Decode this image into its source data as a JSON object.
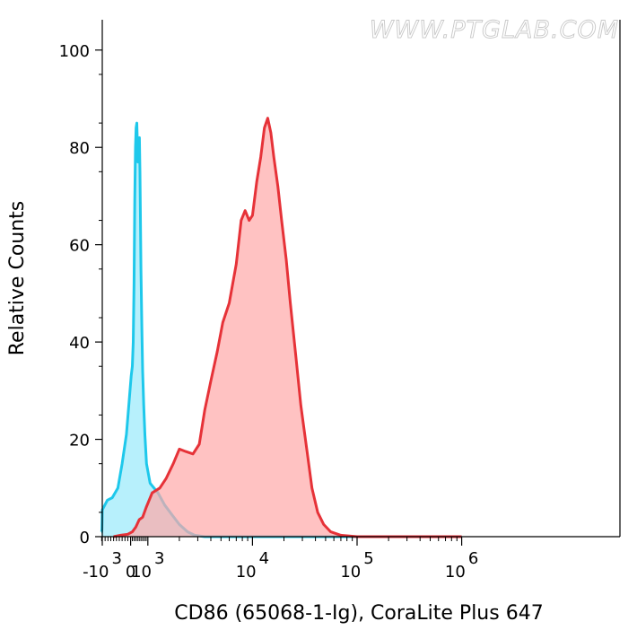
{
  "watermark": "WWW.PTGLAB.COM",
  "chart_data": {
    "type": "area",
    "xlabel": "CD86 (65068-1-Ig), CoraLite Plus 647",
    "ylabel": "Relative Counts",
    "x_scale": "biexponential",
    "xlim": [
      -3000,
      1000000
    ],
    "ylim": [
      0,
      105
    ],
    "grid": false,
    "x_ticks": [
      {
        "base": "-10",
        "exp": "3",
        "value": -1000
      },
      {
        "base": "0",
        "exp": "",
        "value": 0
      },
      {
        "base": "10",
        "exp": "3",
        "value": 1000
      },
      {
        "base": "10",
        "exp": "4",
        "value": 10000
      },
      {
        "base": "10",
        "exp": "5",
        "value": 100000
      },
      {
        "base": "10",
        "exp": "6",
        "value": 1000000
      }
    ],
    "y_ticks": [
      0,
      20,
      40,
      60,
      80,
      100
    ],
    "series": [
      {
        "color": "#1ec8eb",
        "fill": "#99e9fb",
        "points": [
          [
            -2850,
            1
          ],
          [
            -2000,
            1
          ],
          [
            -1500,
            1.5
          ],
          [
            -1200,
            3
          ],
          [
            -1000,
            5.5
          ],
          [
            -820,
            7.5
          ],
          [
            -650,
            8
          ],
          [
            -450,
            10
          ],
          [
            -300,
            15
          ],
          [
            -150,
            21
          ],
          [
            -50,
            28
          ],
          [
            30,
            33
          ],
          [
            100,
            35
          ],
          [
            150,
            40
          ],
          [
            200,
            52
          ],
          [
            240,
            69
          ],
          [
            280,
            80
          ],
          [
            320,
            84
          ],
          [
            360,
            85
          ],
          [
            390,
            81
          ],
          [
            420,
            77
          ],
          [
            450,
            79
          ],
          [
            480,
            81
          ],
          [
            510,
            82
          ],
          [
            540,
            75
          ],
          [
            570,
            66
          ],
          [
            600,
            55
          ],
          [
            650,
            43
          ],
          [
            700,
            34
          ],
          [
            760,
            27
          ],
          [
            830,
            21
          ],
          [
            920,
            15
          ],
          [
            1050,
            11
          ],
          [
            1250,
            9
          ],
          [
            1450,
            6.5
          ],
          [
            1700,
            4.5
          ],
          [
            2000,
            2.5
          ],
          [
            2400,
            1
          ],
          [
            2800,
            0.3
          ],
          [
            3500,
            0
          ],
          [
            1000000,
            0
          ]
        ]
      },
      {
        "color": "#e63238",
        "fill": "#ffa8a8",
        "points": [
          [
            -600,
            0
          ],
          [
            -350,
            0.3
          ],
          [
            -100,
            0.5
          ],
          [
            100,
            1
          ],
          [
            300,
            2
          ],
          [
            500,
            3.5
          ],
          [
            700,
            4
          ],
          [
            900,
            6
          ],
          [
            1100,
            9
          ],
          [
            1300,
            10
          ],
          [
            1500,
            12
          ],
          [
            1750,
            15
          ],
          [
            2000,
            18
          ],
          [
            2300,
            17.5
          ],
          [
            2700,
            17
          ],
          [
            3100,
            19
          ],
          [
            3500,
            26
          ],
          [
            4000,
            32
          ],
          [
            4600,
            38
          ],
          [
            5200,
            44
          ],
          [
            6000,
            48
          ],
          [
            7000,
            56
          ],
          [
            7800,
            65
          ],
          [
            8500,
            67
          ],
          [
            9300,
            65
          ],
          [
            10000,
            66
          ],
          [
            11000,
            73
          ],
          [
            12000,
            78
          ],
          [
            13000,
            84
          ],
          [
            14000,
            86
          ],
          [
            15000,
            83
          ],
          [
            16000,
            78
          ],
          [
            17500,
            72
          ],
          [
            19000,
            65
          ],
          [
            21000,
            57
          ],
          [
            23000,
            48
          ],
          [
            26000,
            37
          ],
          [
            29000,
            27
          ],
          [
            33000,
            18
          ],
          [
            37000,
            10
          ],
          [
            42000,
            5
          ],
          [
            48000,
            2.5
          ],
          [
            56000,
            1
          ],
          [
            70000,
            0.3
          ],
          [
            100000,
            0
          ],
          [
            1000000,
            0
          ]
        ]
      }
    ]
  }
}
